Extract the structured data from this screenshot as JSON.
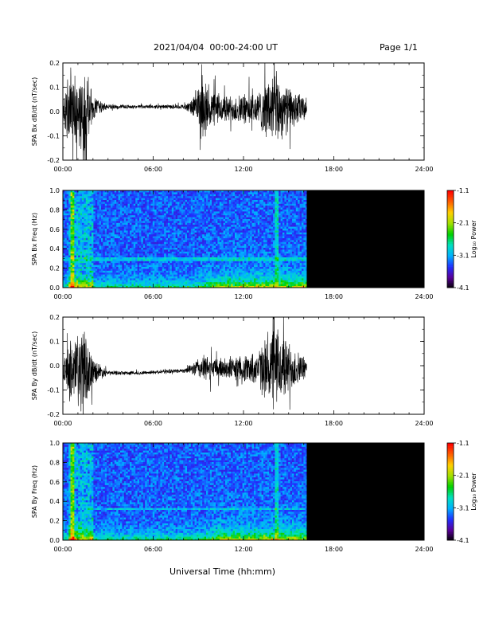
{
  "header": {
    "title": "2021/04/04  00:00-24:00 UT",
    "page": "Page 1/1"
  },
  "x_axis_title": "Universal Time (hh:mm)",
  "colorbar": {
    "label": "Log₁₀ Power",
    "ticks": [
      "-1.1",
      "-2.1",
      "-3.1",
      "-4.1"
    ]
  },
  "colors": {
    "trace": "#000000",
    "no_data_fill": "#000000",
    "colormap": [
      "#000000",
      "#5a009a",
      "#2030ff",
      "#00b0ff",
      "#00e0c0",
      "#00d000",
      "#a0e000",
      "#ffd000",
      "#ff6000",
      "#ff0000"
    ]
  },
  "chart_data": [
    {
      "type": "line",
      "ylabel": "SPA Bx dB/dt (nT/sec)",
      "xlim": [
        0,
        24
      ],
      "ylim": [
        -0.2,
        0.2
      ],
      "xticks": [
        "00:00",
        "06:00",
        "12:00",
        "18:00",
        "24:00"
      ],
      "yticks": [
        "-0.2",
        "-0.1",
        "0.0",
        "0.1",
        "0.2"
      ],
      "data_end_hour": 16.2,
      "envelope": {
        "hour": [
          0.0,
          0.5,
          1.0,
          1.5,
          2.0,
          3.0,
          5.0,
          8.0,
          8.5,
          9.0,
          9.5,
          10.0,
          11.0,
          12.0,
          13.0,
          14.0,
          15.0,
          16.2
        ],
        "baseline": [
          0.0,
          0.0,
          0.0,
          0.0,
          0.01,
          0.02,
          0.02,
          0.02,
          0.015,
          0.02,
          0.01,
          0.01,
          0.01,
          0.01,
          0.01,
          0.01,
          0.01,
          0.01
        ],
        "amplitude": [
          0.05,
          0.2,
          0.15,
          0.2,
          0.06,
          0.01,
          0.008,
          0.01,
          0.03,
          0.1,
          0.12,
          0.08,
          0.06,
          0.07,
          0.08,
          0.18,
          0.1,
          0.05
        ]
      }
    },
    {
      "type": "heatmap",
      "ylabel": "SPA Bx Freq (Hz)",
      "xlim": [
        0,
        24
      ],
      "ylim": [
        0.0,
        1.0
      ],
      "xticks": [
        "00:00",
        "06:00",
        "12:00",
        "18:00",
        "24:00"
      ],
      "yticks": [
        "0.0",
        "0.2",
        "0.4",
        "0.6",
        "0.8",
        "1.0"
      ],
      "zlim": [
        -4.1,
        -1.1
      ],
      "data_end_hour": 16.2,
      "no_data_range_hours": [
        16.2,
        24
      ]
    },
    {
      "type": "line",
      "ylabel": "SPA By dB/dt (nT/sec)",
      "xlim": [
        0,
        24
      ],
      "ylim": [
        -0.2,
        0.2
      ],
      "xticks": [
        "00:00",
        "06:00",
        "12:00",
        "18:00",
        "24:00"
      ],
      "yticks": [
        "-0.2",
        "-0.1",
        "0.0",
        "0.1",
        "0.2"
      ],
      "data_end_hour": 16.2,
      "envelope": {
        "hour": [
          0.0,
          0.5,
          1.0,
          1.5,
          2.0,
          3.0,
          5.0,
          8.0,
          8.5,
          9.0,
          9.5,
          10.0,
          11.0,
          12.0,
          13.0,
          14.0,
          15.0,
          16.2
        ],
        "baseline": [
          -0.02,
          -0.02,
          -0.02,
          -0.02,
          -0.02,
          -0.03,
          -0.03,
          -0.02,
          -0.015,
          -0.01,
          -0.01,
          -0.01,
          -0.01,
          -0.01,
          -0.01,
          -0.01,
          -0.01,
          -0.01
        ],
        "amplitude": [
          0.03,
          0.15,
          0.2,
          0.18,
          0.06,
          0.01,
          0.008,
          0.01,
          0.02,
          0.05,
          0.06,
          0.05,
          0.05,
          0.06,
          0.08,
          0.2,
          0.12,
          0.04
        ]
      }
    },
    {
      "type": "heatmap",
      "ylabel": "SPA By Freq (Hz)",
      "xlim": [
        0,
        24
      ],
      "ylim": [
        0.0,
        1.0
      ],
      "xticks": [
        "00:00",
        "06:00",
        "12:00",
        "18:00",
        "24:00"
      ],
      "yticks": [
        "0.0",
        "0.2",
        "0.4",
        "0.6",
        "0.8",
        "1.0"
      ],
      "zlim": [
        -4.1,
        -1.1
      ],
      "data_end_hour": 16.2,
      "no_data_range_hours": [
        16.2,
        24
      ]
    }
  ]
}
